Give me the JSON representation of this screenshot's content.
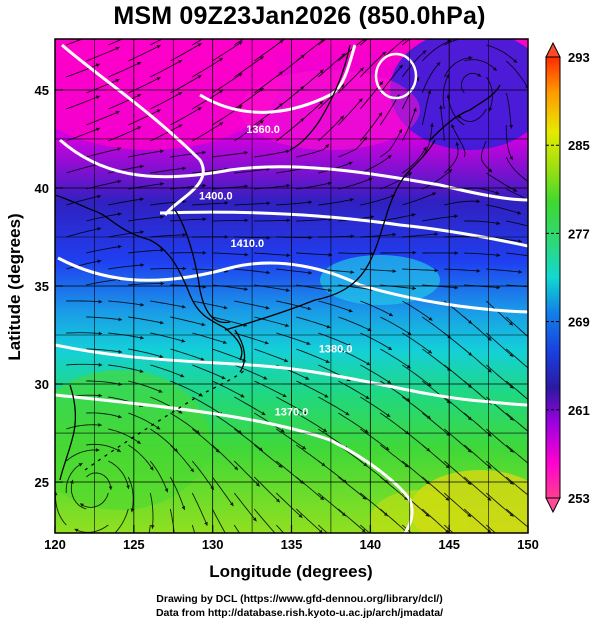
{
  "title": "MSM 09Z23Jan2026 (850.0hPa)",
  "footer": {
    "line1": "Drawing by DCL (https://www.gfd-dennou.org/library/dcl/)",
    "line2": "Data from http://database.rish.kyoto-u.ac.jp/arch/jmadata/"
  },
  "map": {
    "xlabel": "Longitude (degrees)",
    "ylabel": "Latitude  (degrees)",
    "lon_range": [
      120,
      150
    ],
    "lat_range": [
      22.4,
      47.6
    ],
    "lon_ticks": [
      "120",
      "125",
      "130",
      "135",
      "140",
      "145",
      "150"
    ],
    "lat_ticks": [
      "25",
      "30",
      "35",
      "40",
      "45"
    ],
    "fields": [
      "temperature (shaded)",
      "geopotential height (white contours)",
      "streamlines (black)"
    ],
    "contour_labels": [
      {
        "text": "1360.0",
        "lon": 133.2,
        "lat": 42.8
      },
      {
        "text": "1400.0",
        "lon": 130.2,
        "lat": 39.4
      },
      {
        "text": "1410.0",
        "lon": 132.2,
        "lat": 37.0
      },
      {
        "text": "1380.0",
        "lon": 137.8,
        "lat": 31.6
      },
      {
        "text": "1370.0",
        "lon": 135.0,
        "lat": 28.4
      }
    ]
  },
  "colorbar": {
    "labels": [
      "293",
      "285",
      "277",
      "269",
      "261",
      "253"
    ],
    "min": 253,
    "max": 293,
    "colors": [
      "#ff3f8f",
      "#ff00d0",
      "#9d00e0",
      "#2a1aa0",
      "#1a3fe0",
      "#12a8e6",
      "#12d8d0",
      "#2ed87a",
      "#6ad81e",
      "#c4e60e",
      "#ffea00",
      "#ff8a00",
      "#ff2a00"
    ]
  }
}
